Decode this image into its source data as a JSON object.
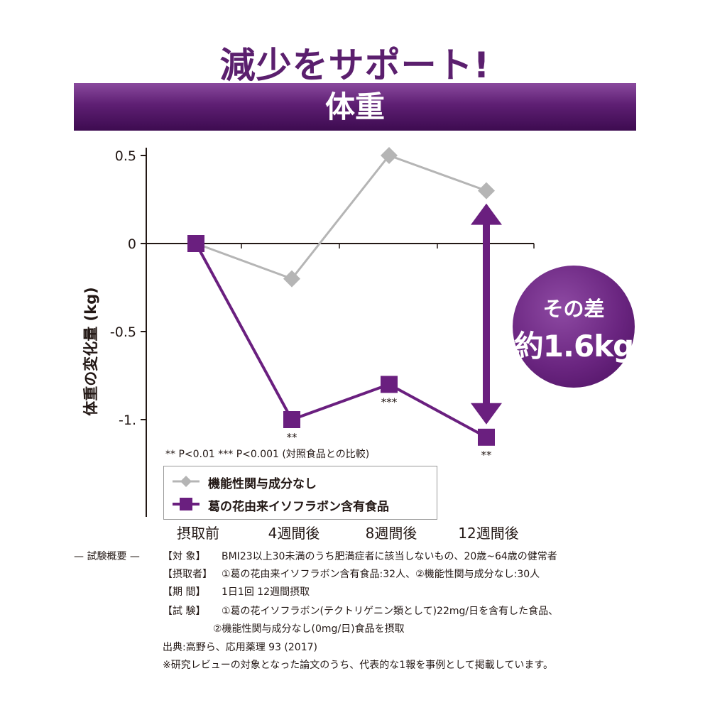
{
  "headline": "減少をサポート!",
  "banner": "体重",
  "chart_data": {
    "type": "line",
    "categories": [
      "摂取前",
      "4週間後",
      "8週間後",
      "12週間後"
    ],
    "ylabel": "体重の変化量 (kg)",
    "ylim": [
      -1.5,
      0.5
    ],
    "yticks": [
      {
        "value": 0.5,
        "label": "0.5"
      },
      {
        "value": 0,
        "label": "0"
      },
      {
        "value": -0.5,
        "label": "-0.5"
      },
      {
        "value": -1,
        "label": "-1."
      }
    ],
    "series": [
      {
        "name": "機能性関与成分なし",
        "color": "#b5b5b5",
        "marker": "diamond",
        "values": [
          0,
          -0.2,
          0.5,
          0.3
        ]
      },
      {
        "name": "葛の花由来イソフラボン含有食品",
        "color": "#6a1f7f",
        "marker": "square",
        "values": [
          0,
          -1.0,
          -0.8,
          -1.1
        ]
      }
    ],
    "significance": [
      "",
      "**",
      "***",
      "**"
    ],
    "p_note": "** P<0.01 *** P<0.001 (対照食品との比較)",
    "difference_label_1": "その差",
    "difference_label_2": "約1.6kg"
  },
  "notes": {
    "header": "— 試験概要 —",
    "subject_label": "【対 象】",
    "subject": "BMI23以上30未満のうち肥満症者に該当しないもの、20歳~64歳の健常者",
    "intake_label": "【摂取者】",
    "intake": "①葛の花由来イソフラボン含有食品:32人、②機能性関与成分なし:30人",
    "period_label": "【期 間】",
    "period": "1日1回 12週間摂取",
    "test_label": "【試 験】",
    "test_1": "①葛の花イソフラボン(テクトリゲニン類として)22mg/日を含有した食品、",
    "test_2": "②機能性関与成分なし(0mg/日)食品を摂取",
    "source": "出典:高野ら、応用薬理 93 (2017)",
    "remark": "※研究レビューの対象となった論文のうち、代表的な1報を事例として掲載しています。"
  }
}
